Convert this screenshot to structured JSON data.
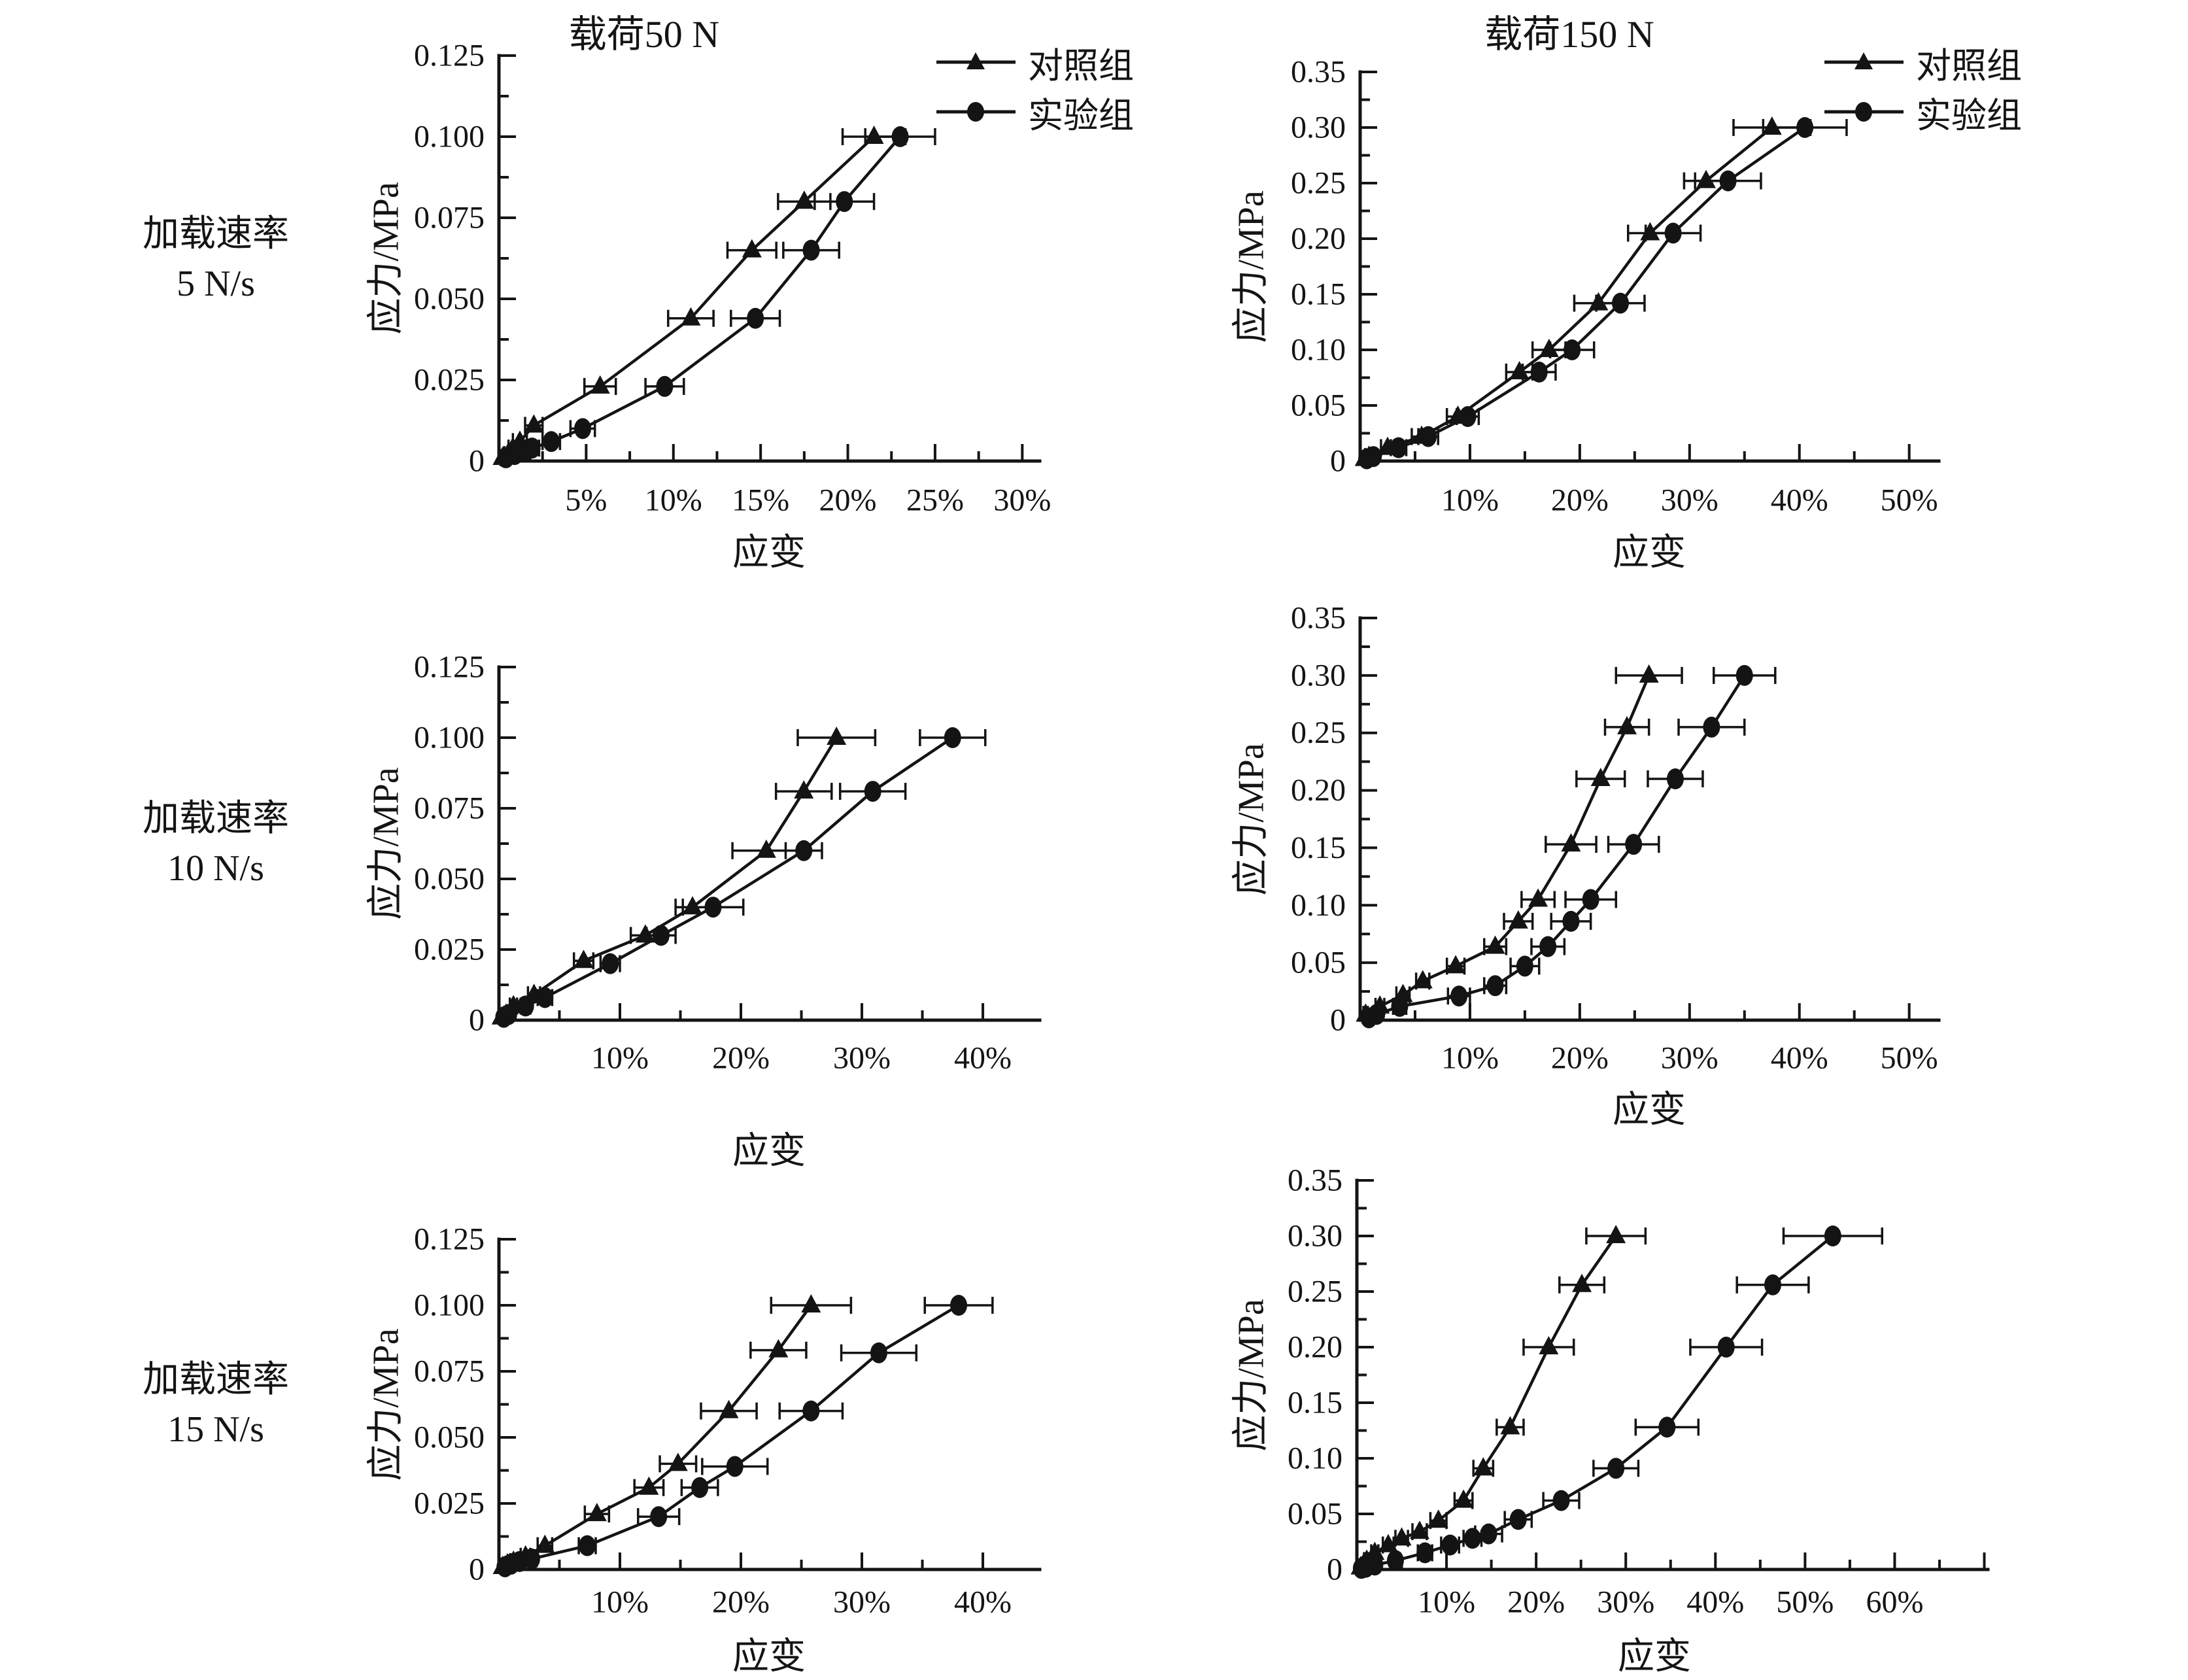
{
  "page": {
    "background": "#ffffff"
  },
  "colors": {
    "ink": "#141414"
  },
  "titles": {
    "left": "载荷50 N",
    "right": "载荷150 N"
  },
  "row_labels": [
    {
      "line1": "加载速率",
      "line2": "5 N/s"
    },
    {
      "line1": "加载速率",
      "line2": "10 N/s"
    },
    {
      "line1": "加载速率",
      "line2": "15 N/s"
    }
  ],
  "axis_titles": {
    "x": "应变",
    "y": "应力/MPa"
  },
  "legend": {
    "control": "对照组",
    "experimental": "实验组"
  },
  "chart_data": [
    {
      "id": "load50-rate5",
      "type": "line",
      "title": "载荷50 N",
      "row": "加载速率 5 N/s",
      "xlabel": "应变",
      "ylabel": "应力/MPa",
      "xlim": [
        0,
        31
      ],
      "ylim": [
        0,
        0.125
      ],
      "x_major": 5,
      "x_minor": 2.5,
      "y_major": 0.025,
      "y_minor": 0.0125,
      "x_tick_labels": [
        {
          "v": 5,
          "t": "5%"
        },
        {
          "v": 10,
          "t": "10%"
        },
        {
          "v": 15,
          "t": "15%"
        },
        {
          "v": 20,
          "t": "20%"
        },
        {
          "v": 25,
          "t": "25%"
        },
        {
          "v": 30,
          "t": "30%"
        }
      ],
      "y_tick_labels": [
        {
          "v": 0,
          "t": "0"
        },
        {
          "v": 0.025,
          "t": "0.025"
        },
        {
          "v": 0.05,
          "t": "0.050"
        },
        {
          "v": 0.075,
          "t": "0.075"
        },
        {
          "v": 0.1,
          "t": "0.100"
        },
        {
          "v": 0.125,
          "t": "0.125"
        }
      ],
      "plot": {
        "x0": 763,
        "x1": 1590,
        "y_bottom": 705,
        "y_top": 85
      },
      "x_label_y": 765,
      "series": [
        {
          "key": "control",
          "name": "对照组",
          "marker": "triangle",
          "x": [
            0.2,
            0.5,
            0.8,
            1.2,
            2.0,
            5.8,
            11.0,
            14.5,
            17.5,
            21.5
          ],
          "y": [
            0.001,
            0.002,
            0.004,
            0.006,
            0.011,
            0.023,
            0.044,
            0.065,
            0.08,
            0.1
          ],
          "xerr": [
            0.1,
            0.2,
            0.25,
            0.4,
            0.5,
            0.9,
            1.3,
            1.4,
            1.5,
            1.8
          ]
        },
        {
          "key": "experimental",
          "name": "实验组",
          "marker": "circle",
          "x": [
            0.4,
            0.9,
            1.5,
            1.9,
            3.0,
            4.8,
            9.5,
            14.7,
            17.9,
            19.8,
            23.0
          ],
          "y": [
            0.001,
            0.002,
            0.003,
            0.004,
            0.006,
            0.01,
            0.023,
            0.044,
            0.065,
            0.08,
            0.1
          ],
          "xerr": [
            0.1,
            0.2,
            0.3,
            0.4,
            0.5,
            0.7,
            1.1,
            1.4,
            1.6,
            1.7,
            2.0
          ]
        }
      ]
    },
    {
      "id": "load150-rate5",
      "type": "line",
      "title": "载荷150 N",
      "row": "加载速率 5 N/s",
      "xlabel": "应变",
      "ylabel": "应力/MPa",
      "xlim": [
        0,
        52.7
      ],
      "ylim": [
        0,
        0.35
      ],
      "x_major": 10,
      "x_minor": 5,
      "y_major": 0.05,
      "y_minor": 0.025,
      "x_tick_labels": [
        {
          "v": 10,
          "t": "10%"
        },
        {
          "v": 20,
          "t": "20%"
        },
        {
          "v": 30,
          "t": "30%"
        },
        {
          "v": 40,
          "t": "40%"
        },
        {
          "v": 50,
          "t": "50%"
        }
      ],
      "y_tick_labels": [
        {
          "v": 0,
          "t": "0"
        },
        {
          "v": 0.05,
          "t": "0.05"
        },
        {
          "v": 0.1,
          "t": "0.10"
        },
        {
          "v": 0.15,
          "t": "0.15"
        },
        {
          "v": 0.2,
          "t": "0.20"
        },
        {
          "v": 0.25,
          "t": "0.25"
        },
        {
          "v": 0.3,
          "t": "0.30"
        },
        {
          "v": 0.35,
          "t": "0.35"
        }
      ],
      "plot": {
        "x0": 2080,
        "x1": 2965,
        "y_bottom": 705,
        "y_top": 110
      },
      "x_label_y": 765,
      "series": [
        {
          "key": "control",
          "name": "对照组",
          "marker": "triangle",
          "x": [
            0.4,
            0.8,
            2.5,
            5.6,
            8.9,
            14.5,
            17.2,
            21.7,
            26.4,
            31.5,
            37.5
          ],
          "y": [
            0.002,
            0.004,
            0.012,
            0.022,
            0.04,
            0.08,
            0.1,
            0.142,
            0.205,
            0.252,
            0.3
          ],
          "xerr": [
            0.15,
            0.3,
            0.6,
            0.9,
            1.0,
            1.2,
            1.5,
            2.2,
            2.0,
            2.0,
            3.5
          ]
        },
        {
          "key": "experimental",
          "name": "实验组",
          "marker": "circle",
          "x": [
            0.6,
            1.2,
            3.5,
            6.2,
            9.8,
            16.3,
            19.3,
            23.7,
            28.5,
            33.5,
            40.5
          ],
          "y": [
            0.002,
            0.004,
            0.012,
            0.022,
            0.04,
            0.08,
            0.1,
            0.142,
            0.205,
            0.252,
            0.3
          ],
          "xerr": [
            0.2,
            0.3,
            0.7,
            0.9,
            1.0,
            1.5,
            2.0,
            2.2,
            2.5,
            3.0,
            3.8
          ]
        }
      ]
    },
    {
      "id": "load50-rate10",
      "type": "line",
      "title": "载荷50 N",
      "row": "加载速率 10 N/s",
      "xlabel": "应变",
      "ylabel": "应力/MPa",
      "xlim": [
        0,
        44.7
      ],
      "ylim": [
        0,
        0.125
      ],
      "x_major": 10,
      "x_minor": 5,
      "y_major": 0.025,
      "y_minor": 0.0125,
      "x_tick_labels": [
        {
          "v": 10,
          "t": "10%"
        },
        {
          "v": 20,
          "t": "20%"
        },
        {
          "v": 30,
          "t": "30%"
        },
        {
          "v": 40,
          "t": "40%"
        }
      ],
      "y_tick_labels": [
        {
          "v": 0,
          "t": "0"
        },
        {
          "v": 0.025,
          "t": "0.025"
        },
        {
          "v": 0.05,
          "t": "0.050"
        },
        {
          "v": 0.075,
          "t": "0.075"
        },
        {
          "v": 0.1,
          "t": "0.100"
        },
        {
          "v": 0.125,
          "t": "0.125"
        }
      ],
      "plot": {
        "x0": 763,
        "x1": 1590,
        "y_bottom": 1560,
        "y_top": 1020
      },
      "x_label_y": 1618,
      "series": [
        {
          "key": "control",
          "name": "对照组",
          "marker": "triangle",
          "x": [
            0.2,
            0.6,
            1.2,
            2.9,
            7.0,
            12.1,
            16.0,
            22.1,
            25.2,
            27.9
          ],
          "y": [
            0.001,
            0.002,
            0.005,
            0.009,
            0.021,
            0.03,
            0.04,
            0.06,
            0.081,
            0.1
          ],
          "xerr": [
            0.1,
            0.2,
            0.3,
            0.5,
            0.8,
            1.2,
            1.4,
            2.8,
            2.3,
            3.2
          ]
        },
        {
          "key": "experimental",
          "name": "实验组",
          "marker": "circle",
          "x": [
            0.4,
            0.8,
            2.2,
            3.8,
            9.2,
            13.4,
            17.7,
            25.2,
            30.9,
            37.5
          ],
          "y": [
            0.001,
            0.002,
            0.005,
            0.008,
            0.02,
            0.03,
            0.04,
            0.06,
            0.081,
            0.1
          ],
          "xerr": [
            0.1,
            0.2,
            0.4,
            0.6,
            0.8,
            1.2,
            2.5,
            1.5,
            2.7,
            2.7
          ]
        }
      ]
    },
    {
      "id": "load150-rate10",
      "type": "line",
      "title": "载荷150 N",
      "row": "加载速率 10 N/s",
      "xlabel": "应变",
      "ylabel": "应力/MPa",
      "xlim": [
        0,
        52.7
      ],
      "ylim": [
        0,
        0.35
      ],
      "x_major": 10,
      "x_minor": 5,
      "y_major": 0.05,
      "y_minor": 0.025,
      "x_tick_labels": [
        {
          "v": 10,
          "t": "10%"
        },
        {
          "v": 20,
          "t": "20%"
        },
        {
          "v": 30,
          "t": "30%"
        },
        {
          "v": 40,
          "t": "40%"
        },
        {
          "v": 50,
          "t": "50%"
        }
      ],
      "y_tick_labels": [
        {
          "v": 0,
          "t": "0"
        },
        {
          "v": 0.05,
          "t": "0.05"
        },
        {
          "v": 0.1,
          "t": "0.10"
        },
        {
          "v": 0.15,
          "t": "0.15"
        },
        {
          "v": 0.2,
          "t": "0.20"
        },
        {
          "v": 0.25,
          "t": "0.25"
        },
        {
          "v": 0.3,
          "t": "0.30"
        },
        {
          "v": 0.35,
          "t": "0.35"
        }
      ],
      "plot": {
        "x0": 2080,
        "x1": 2965,
        "y_bottom": 1560,
        "y_top": 945
      },
      "x_label_y": 1618,
      "series": [
        {
          "key": "control",
          "name": "对照组",
          "marker": "triangle",
          "x": [
            0.5,
            1.8,
            3.9,
            5.7,
            8.7,
            12.3,
            14.4,
            16.2,
            19.2,
            21.9,
            24.3,
            26.3
          ],
          "y": [
            0.005,
            0.012,
            0.022,
            0.034,
            0.047,
            0.064,
            0.086,
            0.105,
            0.153,
            0.21,
            0.255,
            0.3
          ],
          "xerr": [
            0.2,
            0.4,
            0.6,
            0.6,
            0.8,
            1.0,
            1.3,
            1.5,
            2.3,
            2.2,
            2.0,
            3.0
          ]
        },
        {
          "key": "experimental",
          "name": "实验组",
          "marker": "circle",
          "x": [
            0.8,
            1.5,
            3.6,
            9.0,
            12.3,
            15.0,
            17.1,
            19.2,
            21.0,
            24.9,
            28.7,
            32.0,
            35.0
          ],
          "y": [
            0.002,
            0.005,
            0.012,
            0.021,
            0.03,
            0.047,
            0.064,
            0.086,
            0.105,
            0.153,
            0.21,
            0.255,
            0.3
          ],
          "xerr": [
            0.2,
            0.3,
            0.6,
            1.0,
            1.0,
            1.3,
            1.5,
            1.8,
            2.3,
            2.3,
            2.5,
            3.0,
            2.8
          ]
        }
      ]
    },
    {
      "id": "load50-rate15",
      "type": "line",
      "title": "载荷50 N",
      "row": "加载速率 15 N/s",
      "xlabel": "应变",
      "ylabel": "应力/MPa",
      "xlim": [
        0,
        44.7
      ],
      "ylim": [
        0,
        0.125
      ],
      "x_major": 10,
      "x_minor": 5,
      "y_major": 0.025,
      "y_minor": 0.0125,
      "x_tick_labels": [
        {
          "v": 10,
          "t": "10%"
        },
        {
          "v": 20,
          "t": "20%"
        },
        {
          "v": 30,
          "t": "30%"
        },
        {
          "v": 40,
          "t": "40%"
        }
      ],
      "y_tick_labels": [
        {
          "v": 0,
          "t": "0"
        },
        {
          "v": 0.025,
          "t": "0.025"
        },
        {
          "v": 0.05,
          "t": "0.050"
        },
        {
          "v": 0.075,
          "t": "0.075"
        },
        {
          "v": 0.1,
          "t": "0.100"
        },
        {
          "v": 0.125,
          "t": "0.125"
        }
      ],
      "plot": {
        "x0": 763,
        "x1": 1590,
        "y_bottom": 2400,
        "y_top": 1895
      },
      "x_label_y": 2450,
      "series": [
        {
          "key": "control",
          "name": "对照组",
          "marker": "triangle",
          "x": [
            0.3,
            0.7,
            1.2,
            2.2,
            3.8,
            8.1,
            12.4,
            14.8,
            19.0,
            23.1,
            25.8
          ],
          "y": [
            0.001,
            0.002,
            0.003,
            0.005,
            0.009,
            0.021,
            0.031,
            0.04,
            0.06,
            0.083,
            0.1
          ],
          "xerr": [
            0.1,
            0.15,
            0.25,
            0.4,
            0.6,
            1.0,
            1.2,
            1.5,
            2.3,
            2.3,
            3.3
          ]
        },
        {
          "key": "experimental",
          "name": "实验组",
          "marker": "circle",
          "x": [
            0.5,
            1.0,
            1.7,
            2.7,
            7.3,
            13.2,
            16.6,
            19.5,
            25.8,
            31.4,
            38.0
          ],
          "y": [
            0.001,
            0.002,
            0.003,
            0.004,
            0.009,
            0.02,
            0.031,
            0.039,
            0.06,
            0.082,
            0.1
          ],
          "xerr": [
            0.1,
            0.2,
            0.3,
            0.4,
            0.7,
            1.7,
            1.5,
            2.7,
            2.6,
            3.1,
            2.8
          ]
        }
      ]
    },
    {
      "id": "load150-rate15",
      "type": "line",
      "title": "载荷150 N",
      "row": "加载速率 15 N/s",
      "xlabel": "应变",
      "ylabel": "应力/MPa",
      "xlim": [
        0,
        70.4
      ],
      "ylim": [
        0,
        0.35
      ],
      "x_major": 10,
      "x_minor": 5,
      "y_major": 0.05,
      "y_minor": 0.025,
      "x_tick_labels": [
        {
          "v": 10,
          "t": "10%"
        },
        {
          "v": 20,
          "t": "20%"
        },
        {
          "v": 30,
          "t": "30%"
        },
        {
          "v": 40,
          "t": "40%"
        },
        {
          "v": 50,
          "t": "50%"
        },
        {
          "v": 60,
          "t": "60%"
        }
      ],
      "y_tick_labels": [
        {
          "v": 0,
          "t": "0"
        },
        {
          "v": 0.05,
          "t": "0.05"
        },
        {
          "v": 0.1,
          "t": "0.10"
        },
        {
          "v": 0.15,
          "t": "0.15"
        },
        {
          "v": 0.2,
          "t": "0.20"
        },
        {
          "v": 0.25,
          "t": "0.25"
        },
        {
          "v": 0.3,
          "t": "0.30"
        },
        {
          "v": 0.35,
          "t": "0.35"
        }
      ],
      "plot": {
        "x0": 2075,
        "x1": 3040,
        "y_bottom": 2400,
        "y_top": 1805
      },
      "x_label_y": 2450,
      "series": [
        {
          "key": "control",
          "name": "对照组",
          "marker": "triangle",
          "x": [
            0.4,
            0.7,
            1.1,
            2.0,
            3.5,
            5.0,
            7.0,
            9.1,
            11.9,
            14.1,
            17.1,
            21.4,
            25.1,
            28.9
          ],
          "y": [
            0.002,
            0.004,
            0.008,
            0.015,
            0.022,
            0.028,
            0.034,
            0.044,
            0.062,
            0.091,
            0.128,
            0.2,
            0.256,
            0.3
          ],
          "xerr": [
            0.1,
            0.15,
            0.3,
            0.4,
            0.6,
            0.7,
            0.8,
            0.9,
            1.0,
            1.1,
            1.5,
            2.8,
            2.5,
            3.3
          ]
        },
        {
          "key": "experimental",
          "name": "实验组",
          "marker": "circle",
          "x": [
            0.5,
            1.0,
            2.0,
            4.3,
            7.6,
            10.4,
            12.9,
            14.7,
            18.0,
            22.8,
            28.9,
            34.6,
            41.2,
            46.4,
            53.1
          ],
          "y": [
            0.001,
            0.002,
            0.004,
            0.008,
            0.015,
            0.022,
            0.028,
            0.032,
            0.045,
            0.062,
            0.091,
            0.128,
            0.2,
            0.256,
            0.3
          ],
          "xerr": [
            0.1,
            0.2,
            0.3,
            0.5,
            0.8,
            1.0,
            1.0,
            1.5,
            1.5,
            2.0,
            2.5,
            3.5,
            4.0,
            4.0,
            5.5
          ]
        }
      ]
    }
  ]
}
